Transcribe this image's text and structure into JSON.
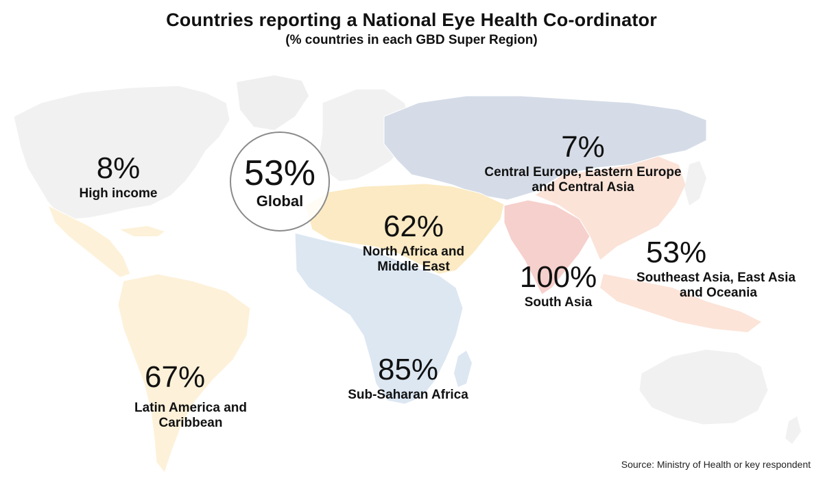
{
  "title": "Countries reporting a National Eye Health Co-ordinator",
  "subtitle": "(% countries in each GBD Super Region)",
  "source": "Source: Ministry of Health or key respondent",
  "global": {
    "pct": "53%",
    "name": "Global"
  },
  "regions": {
    "high_income": {
      "pct": "8%",
      "name": "High income",
      "value": 8,
      "color": "#f2f2f2"
    },
    "ceeca": {
      "pct": "7%",
      "name_line1": "Central Europe, Eastern Europe",
      "name_line2": "and Central Asia",
      "value": 7,
      "color": "#d6dde8"
    },
    "nafme": {
      "pct": "62%",
      "name_line1": "North Africa and",
      "name_line2": "Middle East",
      "value": 62,
      "color": "#fbecc8"
    },
    "south_asia": {
      "pct": "100%",
      "name": "South Asia",
      "value": 100,
      "color": "#f7d3cf"
    },
    "seao": {
      "pct": "53%",
      "name_line1": "Southeast Asia, East Asia",
      "name_line2": "and Oceania",
      "value": 53,
      "color": "#fbe5da"
    },
    "latam": {
      "pct": "67%",
      "name_line1": "Latin America and",
      "name_line2": "Caribbean",
      "value": 67,
      "color": "#fdf2dc"
    },
    "ssa": {
      "pct": "85%",
      "name": "Sub-Saharan Africa",
      "value": 85,
      "color": "#dde8f3"
    }
  }
}
